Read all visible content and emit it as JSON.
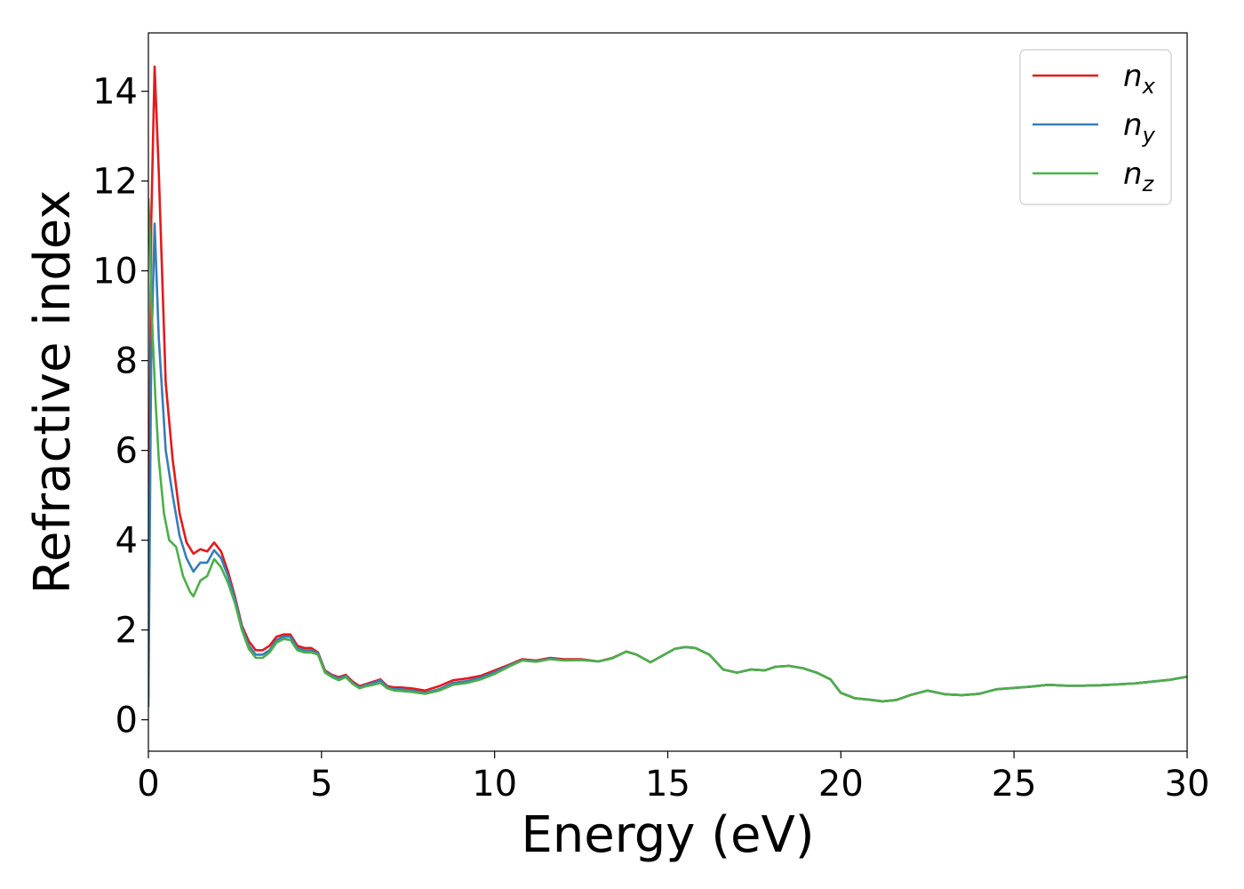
{
  "chart_data": {
    "type": "line",
    "title": "",
    "xlabel": "Energy (eV)",
    "ylabel": "Refractive index",
    "xlim": [
      0,
      30
    ],
    "ylim": [
      -0.7,
      15.3
    ],
    "xticks": [
      0,
      5,
      10,
      15,
      20,
      25,
      30
    ],
    "yticks": [
      0,
      2,
      4,
      6,
      8,
      10,
      12,
      14
    ],
    "grid": false,
    "legend_position": "top-right",
    "series": [
      {
        "name": "n_x",
        "label_main": "n",
        "label_sub": "x",
        "color": "#e41a1c",
        "x": [
          0,
          0.08,
          0.18,
          0.3,
          0.5,
          0.7,
          0.9,
          1.1,
          1.3,
          1.5,
          1.7,
          1.9,
          2.1,
          2.3,
          2.5,
          2.7,
          2.9,
          3.1,
          3.3,
          3.5,
          3.7,
          3.9,
          4.1,
          4.3,
          4.5,
          4.7,
          4.9,
          5.1,
          5.3,
          5.5,
          5.7,
          5.9,
          6.1,
          6.3,
          6.5,
          6.7,
          6.9,
          7.1,
          7.3,
          7.6,
          8.0,
          8.4,
          8.8,
          9.2,
          9.6,
          10.0,
          10.4,
          10.8,
          11.2,
          11.6,
          12.0,
          12.5,
          13.0,
          13.4,
          13.8,
          14.1,
          14.5,
          14.9,
          15.2,
          15.5,
          15.8,
          16.2,
          16.6,
          17.0,
          17.4,
          17.8,
          18.1,
          18.5,
          18.9,
          19.3,
          19.7,
          20.0,
          20.4,
          20.8,
          21.2,
          21.6,
          22.0,
          22.5,
          23.0,
          23.5,
          24.0,
          24.5,
          25.0,
          25.5,
          26.0,
          26.5,
          27.0,
          27.5,
          28.0,
          28.5,
          29.0,
          29.5,
          30.0
        ],
        "y": [
          0.5,
          11.0,
          14.55,
          12.2,
          7.5,
          5.8,
          4.6,
          3.95,
          3.7,
          3.8,
          3.75,
          3.95,
          3.75,
          3.3,
          2.75,
          2.1,
          1.75,
          1.55,
          1.55,
          1.65,
          1.85,
          1.9,
          1.9,
          1.65,
          1.6,
          1.6,
          1.5,
          1.1,
          1.0,
          0.95,
          1.0,
          0.85,
          0.75,
          0.8,
          0.85,
          0.9,
          0.75,
          0.72,
          0.72,
          0.7,
          0.65,
          0.75,
          0.88,
          0.92,
          0.98,
          1.1,
          1.22,
          1.35,
          1.32,
          1.38,
          1.35,
          1.35,
          1.3,
          1.38,
          1.52,
          1.45,
          1.28,
          1.45,
          1.58,
          1.62,
          1.6,
          1.45,
          1.12,
          1.05,
          1.12,
          1.1,
          1.18,
          1.2,
          1.15,
          1.05,
          0.9,
          0.6,
          0.48,
          0.45,
          0.41,
          0.44,
          0.55,
          0.65,
          0.57,
          0.55,
          0.58,
          0.68,
          0.71,
          0.74,
          0.78,
          0.76,
          0.76,
          0.77,
          0.79,
          0.81,
          0.85,
          0.89,
          0.96
        ]
      },
      {
        "name": "n_y",
        "label_main": "n",
        "label_sub": "y",
        "color": "#377eb8",
        "x": [
          0,
          0.08,
          0.18,
          0.3,
          0.5,
          0.7,
          0.9,
          1.1,
          1.3,
          1.5,
          1.7,
          1.9,
          2.1,
          2.3,
          2.5,
          2.7,
          2.9,
          3.1,
          3.3,
          3.5,
          3.7,
          3.9,
          4.1,
          4.3,
          4.5,
          4.7,
          4.9,
          5.1,
          5.3,
          5.5,
          5.7,
          5.9,
          6.1,
          6.3,
          6.5,
          6.7,
          6.9,
          7.1,
          7.3,
          7.6,
          8.0,
          8.4,
          8.8,
          9.2,
          9.6,
          10.0,
          10.4,
          10.8,
          11.2,
          11.6,
          12.0,
          12.5,
          13.0,
          13.4,
          13.8,
          14.1,
          14.5,
          14.9,
          15.2,
          15.5,
          15.8,
          16.2,
          16.6,
          17.0,
          17.4,
          17.8,
          18.1,
          18.5,
          18.9,
          19.3,
          19.7,
          20.0,
          20.4,
          20.8,
          21.2,
          21.6,
          22.0,
          22.5,
          23.0,
          23.5,
          24.0,
          24.5,
          25.0,
          25.5,
          26.0,
          26.5,
          27.0,
          27.5,
          28.0,
          28.5,
          29.0,
          29.5,
          30.0
        ],
        "y": [
          0.3,
          8.0,
          11.05,
          8.5,
          6.0,
          5.0,
          4.1,
          3.6,
          3.3,
          3.5,
          3.5,
          3.78,
          3.6,
          3.2,
          2.7,
          2.05,
          1.65,
          1.45,
          1.45,
          1.55,
          1.78,
          1.85,
          1.85,
          1.6,
          1.55,
          1.55,
          1.48,
          1.08,
          0.98,
          0.92,
          0.98,
          0.82,
          0.72,
          0.78,
          0.82,
          0.88,
          0.72,
          0.68,
          0.68,
          0.65,
          0.6,
          0.68,
          0.82,
          0.86,
          0.94,
          1.06,
          1.2,
          1.33,
          1.3,
          1.36,
          1.33,
          1.33,
          1.3,
          1.37,
          1.52,
          1.45,
          1.28,
          1.45,
          1.58,
          1.62,
          1.6,
          1.45,
          1.12,
          1.05,
          1.12,
          1.1,
          1.18,
          1.2,
          1.15,
          1.05,
          0.9,
          0.6,
          0.48,
          0.45,
          0.41,
          0.44,
          0.55,
          0.65,
          0.57,
          0.55,
          0.58,
          0.68,
          0.71,
          0.74,
          0.78,
          0.76,
          0.76,
          0.77,
          0.79,
          0.81,
          0.85,
          0.89,
          0.96
        ]
      },
      {
        "name": "n_z",
        "label_main": "n",
        "label_sub": "z",
        "color": "#4daf4a",
        "x": [
          0,
          0.04,
          0.1,
          0.2,
          0.3,
          0.45,
          0.6,
          0.8,
          1.0,
          1.2,
          1.3,
          1.5,
          1.7,
          1.9,
          2.1,
          2.3,
          2.5,
          2.7,
          2.9,
          3.1,
          3.3,
          3.5,
          3.7,
          3.9,
          4.1,
          4.3,
          4.5,
          4.7,
          4.9,
          5.1,
          5.3,
          5.5,
          5.7,
          5.9,
          6.1,
          6.3,
          6.5,
          6.7,
          6.9,
          7.1,
          7.3,
          7.6,
          8.0,
          8.4,
          8.8,
          9.2,
          9.6,
          10.0,
          10.4,
          10.8,
          11.2,
          11.6,
          12.0,
          12.5,
          13.0,
          13.4,
          13.8,
          14.1,
          14.5,
          14.9,
          15.2,
          15.5,
          15.8,
          16.2,
          16.6,
          17.0,
          17.4,
          17.8,
          18.1,
          18.5,
          18.9,
          19.3,
          19.7,
          20.0,
          20.4,
          20.8,
          21.2,
          21.6,
          22.0,
          22.5,
          23.0,
          23.5,
          24.0,
          24.5,
          25.0,
          25.5,
          26.0,
          26.5,
          27.0,
          27.5,
          28.0,
          28.5,
          29.0,
          29.5,
          30.0
        ],
        "y": [
          11.6,
          10.8,
          9.0,
          7.2,
          5.8,
          4.6,
          4.0,
          3.85,
          3.2,
          2.85,
          2.75,
          3.1,
          3.2,
          3.58,
          3.4,
          3.05,
          2.6,
          2.0,
          1.58,
          1.38,
          1.38,
          1.5,
          1.72,
          1.8,
          1.78,
          1.55,
          1.5,
          1.5,
          1.45,
          1.05,
          0.95,
          0.88,
          0.95,
          0.8,
          0.7,
          0.75,
          0.78,
          0.82,
          0.7,
          0.65,
          0.64,
          0.62,
          0.58,
          0.65,
          0.78,
          0.82,
          0.9,
          1.02,
          1.18,
          1.32,
          1.29,
          1.35,
          1.32,
          1.33,
          1.3,
          1.37,
          1.52,
          1.45,
          1.28,
          1.45,
          1.58,
          1.62,
          1.6,
          1.45,
          1.12,
          1.05,
          1.12,
          1.1,
          1.18,
          1.2,
          1.15,
          1.05,
          0.9,
          0.6,
          0.48,
          0.45,
          0.41,
          0.44,
          0.55,
          0.65,
          0.57,
          0.55,
          0.58,
          0.68,
          0.71,
          0.74,
          0.78,
          0.76,
          0.76,
          0.77,
          0.79,
          0.81,
          0.85,
          0.89,
          0.96
        ]
      }
    ]
  }
}
